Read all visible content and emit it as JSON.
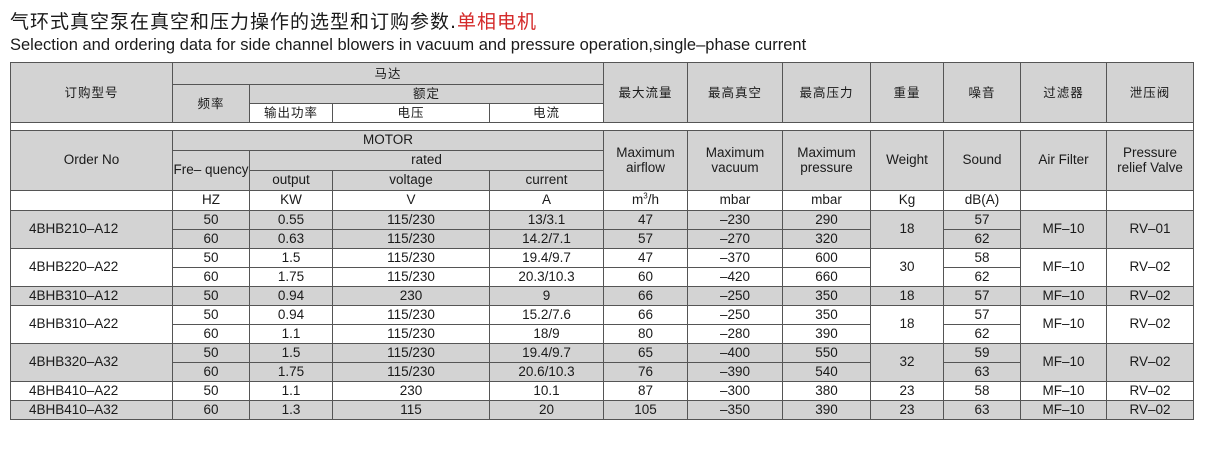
{
  "title": {
    "zh": "气环式真空泵在真空和压力操作的选型和订购参数.",
    "zh_highlight": "单相电机",
    "en": "Selection and ordering data for side channel blowers in vacuum and pressure operation,single–phase current"
  },
  "header_zh": {
    "order_no": "订购型号",
    "motor": "马达",
    "frequency": "频率",
    "rated": "额定",
    "output": "输出功率",
    "voltage": "电压",
    "current": "电流",
    "max_airflow": "最大流量",
    "max_vacuum": "最高真空",
    "max_pressure": "最高压力",
    "weight": "重量",
    "sound": "噪音",
    "air_filter": "过滤器",
    "relief_valve": "泄压阀"
  },
  "header_en": {
    "order_no": "Order No",
    "motor": "MOTOR",
    "frequency": "Fre– quency",
    "rated": "rated",
    "output": "output",
    "voltage": "voltage",
    "current": "current",
    "max_airflow": "Maximum airflow",
    "max_vacuum": "Maximum vacuum",
    "max_pressure": "Maximum pressure",
    "weight": "Weight",
    "sound": "Sound",
    "air_filter": "Air Filter",
    "relief_valve": "Pressure relief Valve"
  },
  "units": {
    "frequency": "HZ",
    "output": "KW",
    "voltage": "V",
    "current": "A",
    "airflow": "m",
    "airflow_sup": "3",
    "airflow_suffix": "/h",
    "vacuum": "mbar",
    "pressure": "mbar",
    "weight": "Kg",
    "sound": "dB(A)"
  },
  "models": [
    {
      "order_no": "4BHB210–A12",
      "weight": "18",
      "air_filter": "MF–10",
      "relief_valve": "RV–01",
      "rows": [
        {
          "frequency": "50",
          "output": "0.55",
          "voltage": "115/230",
          "current": "13/3.1",
          "airflow": "47",
          "vacuum": "–230",
          "pressure": "290",
          "sound": "57"
        },
        {
          "frequency": "60",
          "output": "0.63",
          "voltage": "115/230",
          "current": "14.2/7.1",
          "airflow": "57",
          "vacuum": "–270",
          "pressure": "320",
          "sound": "62"
        }
      ]
    },
    {
      "order_no": "4BHB220–A22",
      "weight": "30",
      "air_filter": "MF–10",
      "relief_valve": "RV–02",
      "rows": [
        {
          "frequency": "50",
          "output": "1.5",
          "voltage": "115/230",
          "current": "19.4/9.7",
          "airflow": "47",
          "vacuum": "–370",
          "pressure": "600",
          "sound": "58"
        },
        {
          "frequency": "60",
          "output": "1.75",
          "voltage": "115/230",
          "current": "20.3/10.3",
          "airflow": "60",
          "vacuum": "–420",
          "pressure": "660",
          "sound": "62"
        }
      ]
    },
    {
      "order_no": "4BHB310–A12",
      "weight": "18",
      "air_filter": "MF–10",
      "relief_valve": "RV–02",
      "rows": [
        {
          "frequency": "50",
          "output": "0.94",
          "voltage": "230",
          "current": "9",
          "airflow": "66",
          "vacuum": "–250",
          "pressure": "350",
          "sound": "57"
        }
      ]
    },
    {
      "order_no": "4BHB310–A22",
      "weight": "18",
      "air_filter": "MF–10",
      "relief_valve": "RV–02",
      "rows": [
        {
          "frequency": "50",
          "output": "0.94",
          "voltage": "115/230",
          "current": "15.2/7.6",
          "airflow": "66",
          "vacuum": "–250",
          "pressure": "350",
          "sound": "57"
        },
        {
          "frequency": "60",
          "output": "1.1",
          "voltage": "115/230",
          "current": "18/9",
          "airflow": "80",
          "vacuum": "–280",
          "pressure": "390",
          "sound": "62"
        }
      ]
    },
    {
      "order_no": "4BHB320–A32",
      "weight": "32",
      "air_filter": "MF–10",
      "relief_valve": "RV–02",
      "rows": [
        {
          "frequency": "50",
          "output": "1.5",
          "voltage": "115/230",
          "current": "19.4/9.7",
          "airflow": "65",
          "vacuum": "–400",
          "pressure": "550",
          "sound": "59"
        },
        {
          "frequency": "60",
          "output": "1.75",
          "voltage": "115/230",
          "current": "20.6/10.3",
          "airflow": "76",
          "vacuum": "–390",
          "pressure": "540",
          "sound": "63"
        }
      ]
    },
    {
      "order_no": "4BHB410–A22",
      "weight": "23",
      "air_filter": "MF–10",
      "relief_valve": "RV–02",
      "rows": [
        {
          "frequency": "50",
          "output": "1.1",
          "voltage": "230",
          "current": "10.1",
          "airflow": "87",
          "vacuum": "–300",
          "pressure": "380",
          "sound": "58"
        }
      ]
    },
    {
      "order_no": "4BHB410–A32",
      "weight": "23",
      "air_filter": "MF–10",
      "relief_valve": "RV–02",
      "rows": [
        {
          "frequency": "60",
          "output": "1.3",
          "voltage": "115",
          "current": "20",
          "airflow": "105",
          "vacuum": "–350",
          "pressure": "390",
          "sound": "63"
        }
      ]
    }
  ],
  "colors": {
    "header_fill": "#d3d3d3",
    "row_fill_alt": "#d3d3d3",
    "highlight_text": "#d42a2a",
    "border": "#555555"
  }
}
